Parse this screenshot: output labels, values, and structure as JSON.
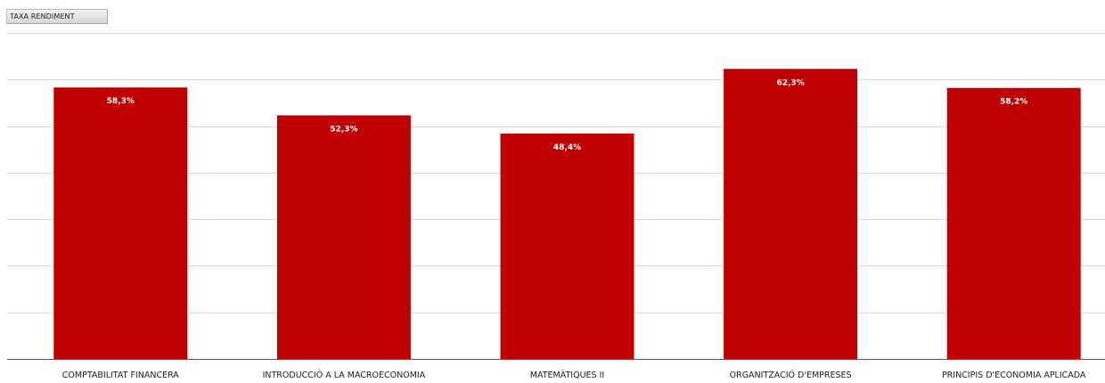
{
  "field_button": {
    "label": "TAXA RENDIMENT"
  },
  "colors": {
    "bar": "#c00000",
    "gridline": "#d9d9d9",
    "axis": "#595959",
    "label_text": "#ffffff"
  },
  "chart_data": {
    "type": "bar",
    "title": "",
    "xlabel": "",
    "ylabel": "",
    "categories": [
      "COMPTABILITAT FINANCERA",
      "INTRODUCCIÓ A LA MACROECONOMIA",
      "MATEMÀTIQUES II",
      "ORGANITZACIÓ D'EMPRESES",
      "PRINCIPIS D'ECONOMIA APLICADA"
    ],
    "values": [
      58.3,
      52.3,
      48.4,
      62.3,
      58.2
    ],
    "data_labels": [
      "58,3%",
      "52,3%",
      "48,4%",
      "62,3%",
      "58,2%"
    ],
    "ylim": [
      0,
      70
    ],
    "ytick_step": 10,
    "grid": true,
    "legend": "none"
  }
}
